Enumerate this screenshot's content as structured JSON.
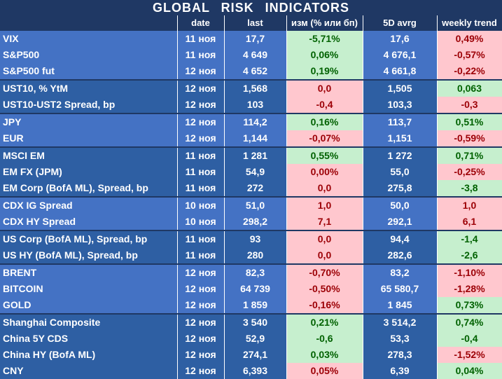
{
  "title": "GLOBAL RISK INDICATORS",
  "headers": [
    "",
    "date",
    "last",
    "изм (% или бп)",
    "5D avrg",
    "weekly trend"
  ],
  "colors": {
    "header_bg": "#1f3864",
    "group_a_bg": "#4472c4",
    "group_b_bg": "#2e5fa3",
    "positive_bg": "#c6efce",
    "positive_text": "#006100",
    "negative_bg": "#ffc7ce",
    "negative_text": "#9c0006"
  },
  "rows": [
    {
      "name": "VIX",
      "date": "11 ноя",
      "last": "17,7",
      "chg": "-5,71%",
      "chg_status": "pos",
      "avg": "17,6",
      "trend": "0,49%",
      "trend_status": "neg",
      "group": "a",
      "sep": false
    },
    {
      "name": "S&P500",
      "date": "11 ноя",
      "last": "4 649",
      "chg": "0,06%",
      "chg_status": "pos",
      "avg": "4 676,1",
      "trend": "-0,57%",
      "trend_status": "neg",
      "group": "a",
      "sep": false
    },
    {
      "name": "S&P500 fut",
      "date": "12 ноя",
      "last": "4 652",
      "chg": "0,19%",
      "chg_status": "pos",
      "avg": "4 661,8",
      "trend": "-0,22%",
      "trend_status": "neg",
      "group": "a",
      "sep": false
    },
    {
      "name": "UST10, % YtM",
      "date": "12 ноя",
      "last": "1,568",
      "chg": "0,0",
      "chg_status": "neg",
      "avg": "1,505",
      "trend": "0,063",
      "trend_status": "pos",
      "group": "b",
      "sep": true
    },
    {
      "name": "UST10-UST2 Spread, bp",
      "date": "12 ноя",
      "last": "103",
      "chg": "-0,4",
      "chg_status": "neg",
      "avg": "103,3",
      "trend": "-0,3",
      "trend_status": "neg",
      "group": "b",
      "sep": false
    },
    {
      "name": "JPY",
      "date": "12 ноя",
      "last": "114,2",
      "chg": "0,16%",
      "chg_status": "pos",
      "avg": "113,7",
      "trend": "0,51%",
      "trend_status": "pos",
      "group": "a",
      "sep": true
    },
    {
      "name": "EUR",
      "date": "12 ноя",
      "last": "1,144",
      "chg": "-0,07%",
      "chg_status": "neg",
      "avg": "1,151",
      "trend": "-0,59%",
      "trend_status": "neg",
      "group": "a",
      "sep": false
    },
    {
      "name": "MSCI EM",
      "date": "11 ноя",
      "last": "1 281",
      "chg": "0,55%",
      "chg_status": "pos",
      "avg": "1 272",
      "trend": "0,71%",
      "trend_status": "pos",
      "group": "b",
      "sep": true
    },
    {
      "name": "EM FX (JPM)",
      "date": "11 ноя",
      "last": "54,9",
      "chg": "0,00%",
      "chg_status": "neg",
      "avg": "55,0",
      "trend": "-0,25%",
      "trend_status": "neg",
      "group": "b",
      "sep": false
    },
    {
      "name": "EM Corp (BofA ML), Spread, bp",
      "date": "11 ноя",
      "last": "272",
      "chg": "0,0",
      "chg_status": "neg",
      "avg": "275,8",
      "trend": "-3,8",
      "trend_status": "pos",
      "group": "b",
      "sep": false
    },
    {
      "name": "CDX IG Spread",
      "date": "10 ноя",
      "last": "51,0",
      "chg": "1,0",
      "chg_status": "neg",
      "avg": "50,0",
      "trend": "1,0",
      "trend_status": "neg",
      "group": "a",
      "sep": true
    },
    {
      "name": "CDX HY Spread",
      "date": "10 ноя",
      "last": "298,2",
      "chg": "7,1",
      "chg_status": "neg",
      "avg": "292,1",
      "trend": "6,1",
      "trend_status": "neg",
      "group": "a",
      "sep": false
    },
    {
      "name": "US Corp (BofA ML), Spread, bp",
      "date": "11 ноя",
      "last": "93",
      "chg": "0,0",
      "chg_status": "neg",
      "avg": "94,4",
      "trend": "-1,4",
      "trend_status": "pos",
      "group": "b",
      "sep": true
    },
    {
      "name": "US HY (BofA ML), Spread, bp",
      "date": "11 ноя",
      "last": "280",
      "chg": "0,0",
      "chg_status": "neg",
      "avg": "282,6",
      "trend": "-2,6",
      "trend_status": "pos",
      "group": "b",
      "sep": false
    },
    {
      "name": "BRENT",
      "date": "12 ноя",
      "last": "82,3",
      "chg": "-0,70%",
      "chg_status": "neg",
      "avg": "83,2",
      "trend": "-1,10%",
      "trend_status": "neg",
      "group": "a",
      "sep": true
    },
    {
      "name": "BITCOIN",
      "date": "12 ноя",
      "last": "64 739",
      "chg": "-0,50%",
      "chg_status": "neg",
      "avg": "65 580,7",
      "trend": "-1,28%",
      "trend_status": "neg",
      "group": "a",
      "sep": false
    },
    {
      "name": "GOLD",
      "date": "12 ноя",
      "last": "1 859",
      "chg": "-0,16%",
      "chg_status": "neg",
      "avg": "1 845",
      "trend": "0,73%",
      "trend_status": "pos",
      "group": "a",
      "sep": false
    },
    {
      "name": "Shanghai Composite",
      "date": "12 ноя",
      "last": "3 540",
      "chg": "0,21%",
      "chg_status": "pos",
      "avg": "3 514,2",
      "trend": "0,74%",
      "trend_status": "pos",
      "group": "b",
      "sep": true
    },
    {
      "name": "China 5Y CDS",
      "date": "12 ноя",
      "last": "52,9",
      "chg": "-0,6",
      "chg_status": "pos",
      "avg": "53,3",
      "trend": "-0,4",
      "trend_status": "pos",
      "group": "b",
      "sep": false
    },
    {
      "name": "China HY (BofA ML)",
      "date": "12 ноя",
      "last": "274,1",
      "chg": "0,03%",
      "chg_status": "pos",
      "avg": "278,3",
      "trend": "-1,52%",
      "trend_status": "neg",
      "group": "b",
      "sep": false
    },
    {
      "name": "CNY",
      "date": "12 ноя",
      "last": "6,393",
      "chg": "0,05%",
      "chg_status": "neg",
      "avg": "6,39",
      "trend": "0,04%",
      "trend_status": "pos",
      "group": "b",
      "sep": false
    }
  ]
}
